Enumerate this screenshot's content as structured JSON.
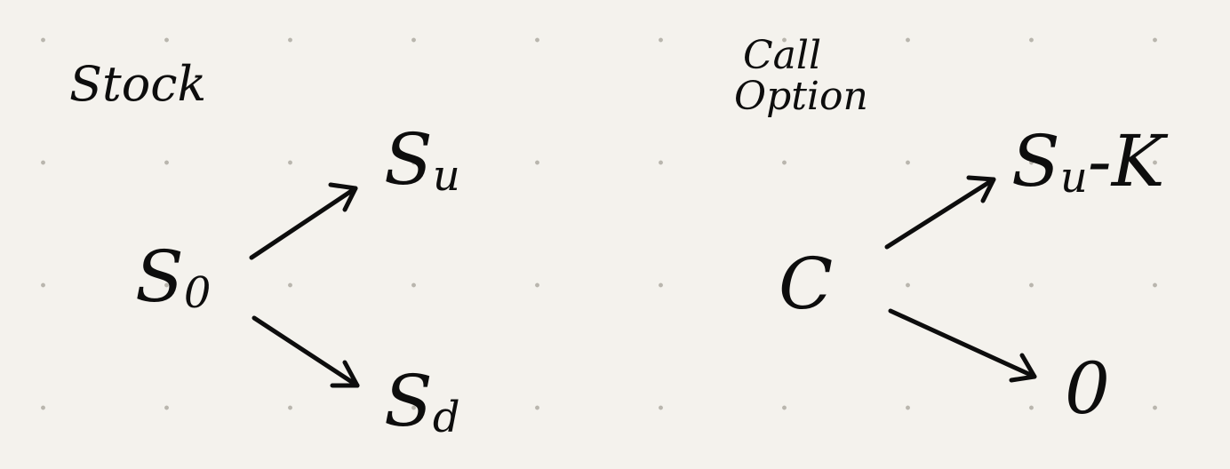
{
  "stock": {
    "title": "Stock",
    "root": {
      "base": "S",
      "sub": "0"
    },
    "up": {
      "base": "S",
      "sub": "u"
    },
    "down": {
      "base": "S",
      "sub": "d"
    }
  },
  "call": {
    "title_line1": "Call",
    "title_line2": "Option",
    "root": "C",
    "up": {
      "base": "S",
      "sub": "u",
      "rest": "-K"
    },
    "down": "0"
  },
  "colors": {
    "ink": "#0d0d0d",
    "paper": "#f4f2ed",
    "dots": "#b9b6ae"
  }
}
